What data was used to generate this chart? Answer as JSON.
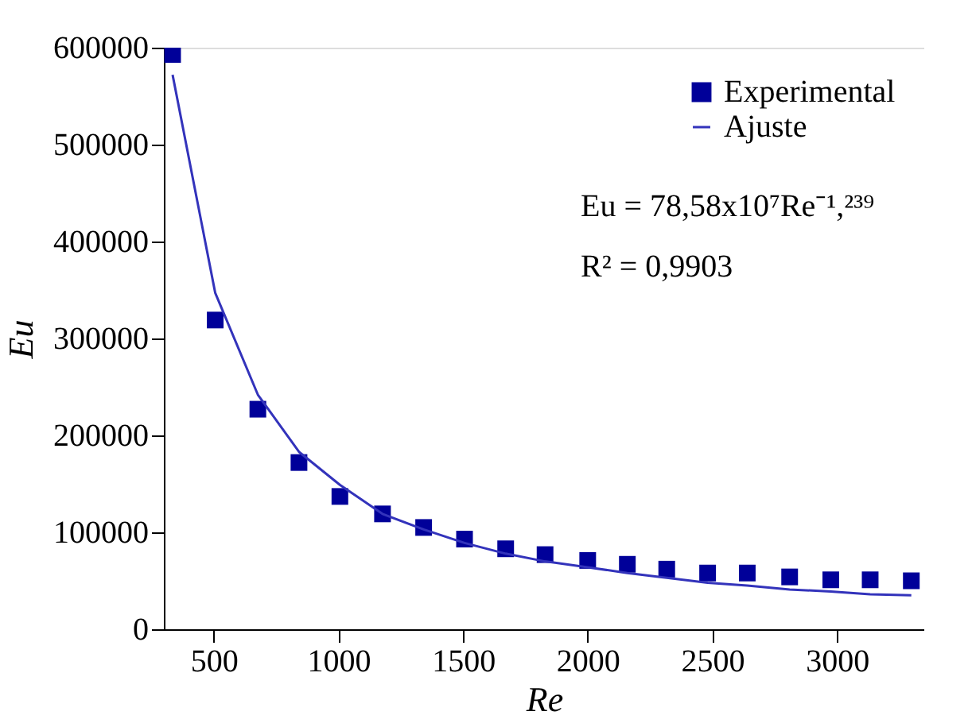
{
  "chart_data": {
    "type": "scatter",
    "xlabel": "Re",
    "ylabel": "Eu",
    "xlim": [
      300,
      3350
    ],
    "xticks": [
      500,
      1000,
      1500,
      2000,
      2500,
      3000
    ],
    "ylim": [
      0,
      600000
    ],
    "yticks": [
      0,
      100000,
      200000,
      300000,
      400000,
      500000,
      600000
    ],
    "x": [
      335,
      506,
      677,
      842,
      1006,
      1177,
      1342,
      1506,
      1671,
      1829,
      2000,
      2159,
      2317,
      2481,
      2640,
      2810,
      2975,
      3133,
      3298
    ],
    "series": [
      {
        "name": "Experimental",
        "marker": "square",
        "color": "#000099",
        "values": [
          593000,
          319000,
          227000,
          172000,
          137000,
          119000,
          105000,
          93000,
          83000,
          77000,
          71000,
          67000,
          62000,
          58000,
          58000,
          54000,
          51000,
          51000,
          50000
        ]
      },
      {
        "name": "Ajuste",
        "type": "line",
        "marker": "none",
        "line_style": "solid",
        "color": "#3333bb",
        "values": [
          572000,
          347000,
          242000,
          183000,
          149000,
          119000,
          103000,
          89000,
          78000,
          70000,
          64000,
          58000,
          53000,
          48000,
          45000,
          41000,
          39000,
          36000,
          35000
        ]
      }
    ],
    "legend": "top right",
    "grid": false,
    "annotations": [
      "Eu = 78,58x10⁷Re⁻¹,²³⁹",
      "R² = 0,9903"
    ]
  }
}
